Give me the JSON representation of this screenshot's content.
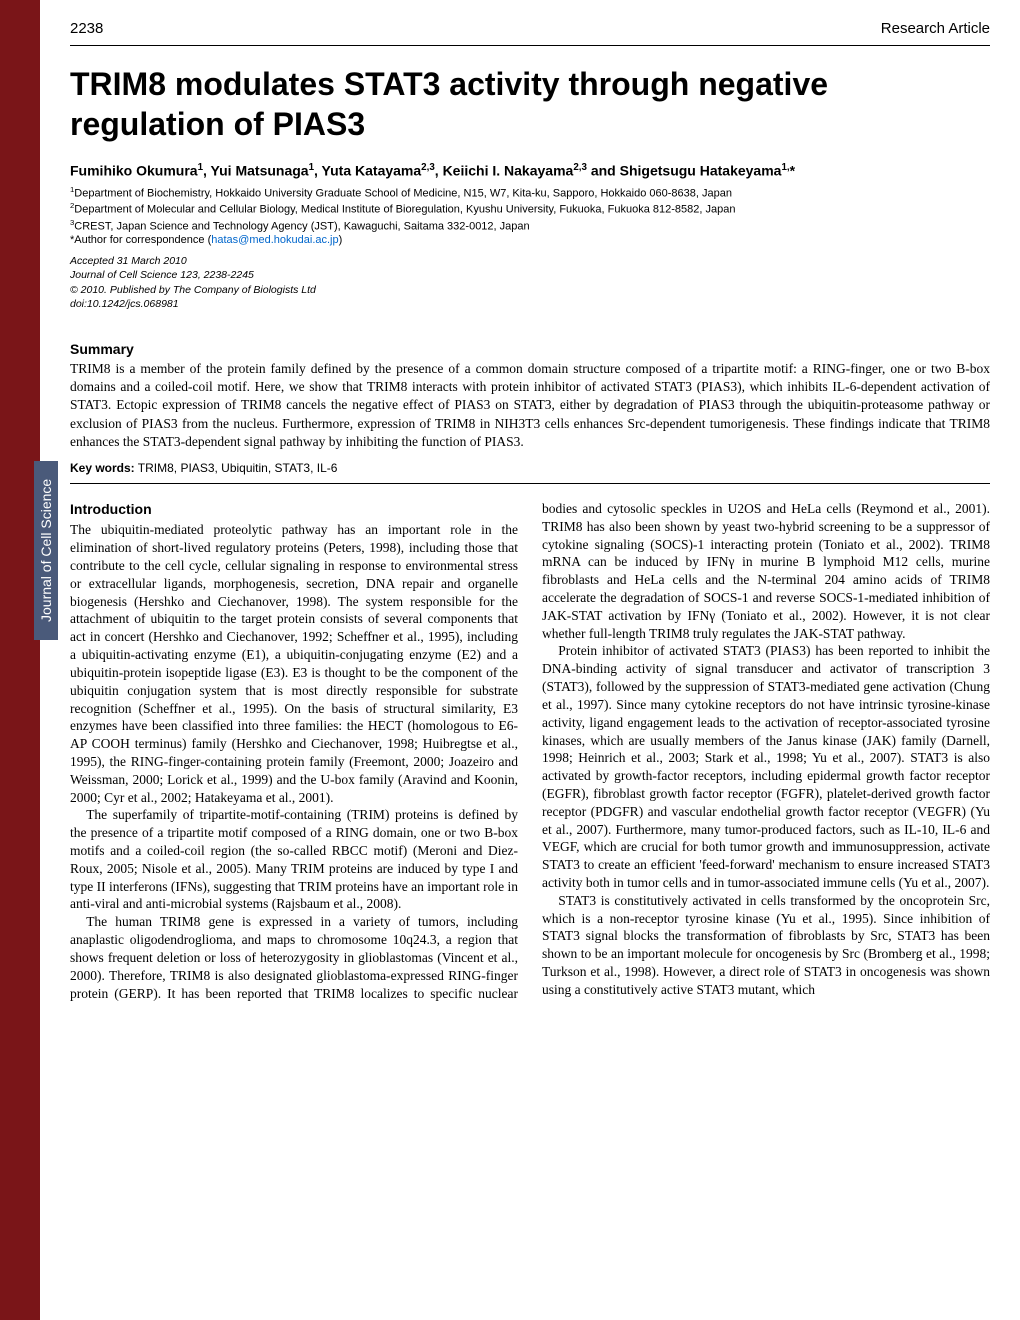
{
  "header": {
    "page_number": "2238",
    "article_type": "Research Article"
  },
  "title": "TRIM8 modulates STAT3 activity through negative regulation of PIAS3",
  "authors_html": "Fumihiko Okumura<sup>1</sup>, Yui Matsunaga<sup>1</sup>, Yuta Katayama<sup>2,3</sup>, Keiichi I. Nakayama<sup>2,3</sup> and Shigetsugu Hatakeyama<sup>1,</sup>*",
  "affiliations": {
    "a1": "Department of Biochemistry, Hokkaido University Graduate School of Medicine, N15, W7, Kita-ku, Sapporo, Hokkaido 060-8638, Japan",
    "a2": "Department of Molecular and Cellular Biology, Medical Institute of Bioregulation, Kyushu University, Fukuoka, Fukuoka 812-8582, Japan",
    "a3": "CREST, Japan Science and Technology Agency (JST), Kawaguchi, Saitama 332-0012, Japan"
  },
  "correspondence_label": "*Author for correspondence (",
  "correspondence_email": "hatas@med.hokudai.ac.jp",
  "accepted": {
    "l1": "Accepted 31 March 2010",
    "l2": "Journal of Cell Science 123, 2238-2245",
    "l3": "© 2010. Published by The Company of Biologists Ltd",
    "l4": "doi:10.1242/jcs.068981"
  },
  "summary_head": "Summary",
  "summary": "TRIM8 is a member of the protein family defined by the presence of a common domain structure composed of a tripartite motif: a RING-finger, one or two B-box domains and a coiled-coil motif. Here, we show that TRIM8 interacts with protein inhibitor of activated STAT3 (PIAS3), which inhibits IL-6-dependent activation of STAT3. Ectopic expression of TRIM8 cancels the negative effect of PIAS3 on STAT3, either by degradation of PIAS3 through the ubiquitin-proteasome pathway or exclusion of PIAS3 from the nucleus. Furthermore, expression of TRIM8 in NIH3T3 cells enhances Src-dependent tumorigenesis. These findings indicate that TRIM8 enhances the STAT3-dependent signal pathway by inhibiting the function of PIAS3.",
  "keywords_label": "Key words:",
  "keywords": " TRIM8, PIAS3, Ubiquitin, STAT3, IL-6",
  "sidebar_label": "Journal of Cell Science",
  "intro_head": "Introduction",
  "body": {
    "p1": "The ubiquitin-mediated proteolytic pathway has an important role in the elimination of short-lived regulatory proteins (Peters, 1998), including those that contribute to the cell cycle, cellular signaling in response to environmental stress or extracellular ligands, morphogenesis, secretion, DNA repair and organelle biogenesis (Hershko and Ciechanover, 1998). The system responsible for the attachment of ubiquitin to the target protein consists of several components that act in concert (Hershko and Ciechanover, 1992; Scheffner et al., 1995), including a ubiquitin-activating enzyme (E1), a ubiquitin-conjugating enzyme (E2) and a ubiquitin-protein isopeptide ligase (E3). E3 is thought to be the component of the ubiquitin conjugation system that is most directly responsible for substrate recognition (Scheffner et al., 1995). On the basis of structural similarity, E3 enzymes have been classified into three families: the HECT (homologous to E6-AP COOH terminus) family (Hershko and Ciechanover, 1998; Huibregtse et al., 1995), the RING-finger-containing protein family (Freemont, 2000; Joazeiro and Weissman, 2000; Lorick et al., 1999) and the U-box family (Aravind and Koonin, 2000; Cyr et al., 2002; Hatakeyama et al., 2001).",
    "p2": "The superfamily of tripartite-motif-containing (TRIM) proteins is defined by the presence of a tripartite motif composed of a RING domain, one or two B-box motifs and a coiled-coil region (the so-called RBCC motif) (Meroni and Diez-Roux, 2005; Nisole et al., 2005). Many TRIM proteins are induced by type I and type II interferons (IFNs), suggesting that TRIM proteins have an important role in anti-viral and anti-microbial systems (Rajsbaum et al., 2008).",
    "p3": "The human TRIM8 gene is expressed in a variety of tumors, including anaplastic oligodendroglioma, and maps to chromosome 10q24.3, a region that shows frequent deletion or loss of heterozygosity in glioblastomas (Vincent et al., 2000). Therefore, TRIM8 is also designated glioblastoma-expressed RING-finger protein (GERP). It has been reported that TRIM8 localizes to specific nuclear bodies and cytosolic speckles in U2OS and HeLa cells (Reymond et al., 2001). TRIM8 has also been shown by yeast two-hybrid screening to be a suppressor of cytokine signaling (SOCS)-1 interacting protein (Toniato et al., 2002). TRIM8 mRNA can be induced by IFNγ in murine B lymphoid M12 cells, murine fibroblasts and HeLa cells and the N-terminal 204 amino acids of TRIM8 accelerate the degradation of SOCS-1 and reverse SOCS-1-mediated inhibition of JAK-STAT activation by IFNγ (Toniato et al., 2002). However, it is not clear whether full-length TRIM8 truly regulates the JAK-STAT pathway.",
    "p4": "Protein inhibitor of activated STAT3 (PIAS3) has been reported to inhibit the DNA-binding activity of signal transducer and activator of transcription 3 (STAT3), followed by the suppression of STAT3-mediated gene activation (Chung et al., 1997). Since many cytokine receptors do not have intrinsic tyrosine-kinase activity, ligand engagement leads to the activation of receptor-associated tyrosine kinases, which are usually members of the Janus kinase (JAK) family (Darnell, 1998; Heinrich et al., 2003; Stark et al., 1998; Yu et al., 2007). STAT3 is also activated by growth-factor receptors, including epidermal growth factor receptor (EGFR), fibroblast growth factor receptor (FGFR), platelet-derived growth factor receptor (PDGFR) and vascular endothelial growth factor receptor (VEGFR) (Yu et al., 2007). Furthermore, many tumor-produced factors, such as IL-10, IL-6 and VEGF, which are crucial for both tumor growth and immunosuppression, activate STAT3 to create an efficient 'feed-forward' mechanism to ensure increased STAT3 activity both in tumor cells and in tumor-associated immune cells (Yu et al., 2007).",
    "p5": "STAT3 is constitutively activated in cells transformed by the oncoprotein Src, which is a non-receptor tyrosine kinase (Yu et al., 1995). Since inhibition of STAT3 signal blocks the transformation of fibroblasts by Src, STAT3 has been shown to be an important molecule for oncogenesis by Src (Bromberg et al., 1998; Turkson et al., 1998). However, a direct role of STAT3 in oncogenesis was shown using a constitutively active STAT3 mutant, which"
  },
  "colors": {
    "left_bar": "#7a1518",
    "side_label_bg": "#4a5a7a",
    "email": "#0066cc"
  }
}
